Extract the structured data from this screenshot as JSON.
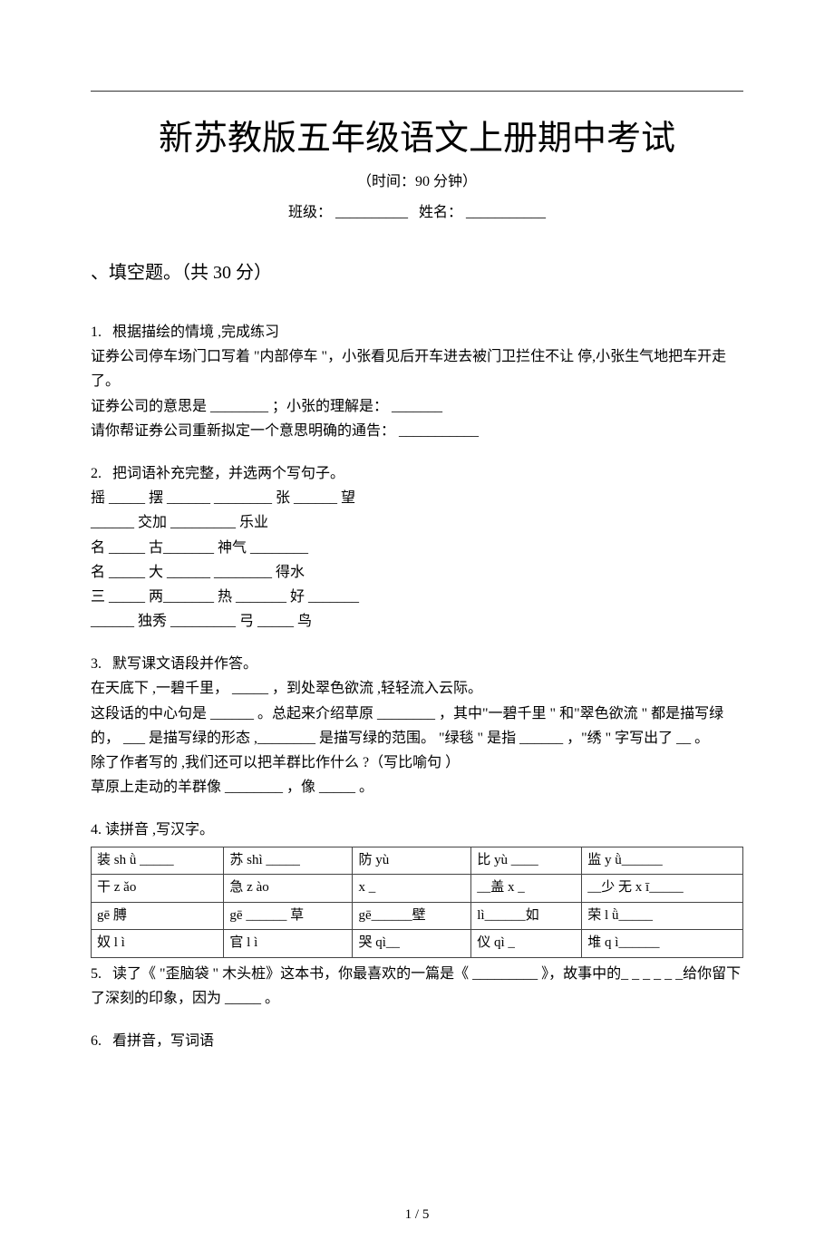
{
  "title": "新苏教版五年级语文上册期中考试",
  "time_prefix": "（时间：",
  "time_value": "90",
  "time_suffix": " 分钟）",
  "meta": {
    "class_label": "班级：",
    "class_blank": "__________",
    "name_label": "姓名：",
    "name_blank": "___________"
  },
  "section1": {
    "header": "、填空题。（共 30 分）"
  },
  "q1": {
    "label": "1.",
    "title": "根据描绘的情境 ,完成练习",
    "line1": "    证券公司停车场门口写着  \"内部停车 \"，小张看见后开车进去被门卫拦住不让 停,小张生气地把车开走了。",
    "line2": "证券公司的意思是  ________ ；小张的理解是： _______",
    "line3": "请你帮证券公司重新拟定一个意思明确的通告：  ___________"
  },
  "q2": {
    "label": "2.",
    "title": "把词语补充完整，并选两个写句子。",
    "r1": "摇 _____ 摆 ______ ________ 张 ______ 望",
    "r2": "______ 交加 _________ 乐业",
    "r3": "名 _____ 古_______ 神气 ________",
    "r4": "名 _____ 大 ______ ________ 得水",
    "r5": "三 _____ 两_______ 热 _______ 好 _______",
    "r6": "______ 独秀 _________ 弓 _____ 鸟"
  },
  "q3": {
    "label": "3.",
    "title": "默写课文语段并作答。",
    "l1": "  在天底下 ,一碧千里， _____ ，到处翠色欲流 ,轻轻流入云际。",
    "l2": "  这段话的中心句是  ______ 。总起来介绍草原  ________ ，其中\"一碧千里 \" 和\"翠色欲流 \" 都是描写绿的， ___ 是描写绿的形态 ,________ 是描写绿的范围。 \"绿毯 \" 是指 ______ ，\"绣 \" 字写出了 __ 。",
    "l3": "  除了作者写的 ,我们还可以把羊群比作什么 ?（写比喻句 ）",
    "l4": "  草原上走动的羊群像  ________ ，像 _____ 。"
  },
  "q4": {
    "label": "4.",
    "title": " 读拼音 ,写汉字。",
    "rows": [
      [
        "装 sh ǜ _____",
        "苏 shì _____",
        "防 yù",
        "比 yù ____",
        "监 y ǜ______"
      ],
      [
        "干 z ǎo",
        "急 z ào",
        "x _",
        "__盖    x _",
        "__少    无 x ī_____"
      ],
      [
        "gē        膊",
        "gē ______ 草",
        "gē______壁",
        "lì______如",
        "荣 l ǜ_____"
      ],
      [
        "奴 l ì",
        "官 l ì",
        "哭 qì__",
        "仪 qì _",
        "堆 q ì______"
      ]
    ]
  },
  "q5": {
    "label": "5.",
    "text": "读了《  \"歪脑袋 \" 木头桩》这本书，你最喜欢的一篇是《  _________ 》，故事中的_ _ _ _ _ _给你留下了深刻的印象，因为  _____ 。"
  },
  "q6": {
    "label": "6.",
    "text": "看拼音，写词语"
  },
  "page_number": "1 / 5"
}
